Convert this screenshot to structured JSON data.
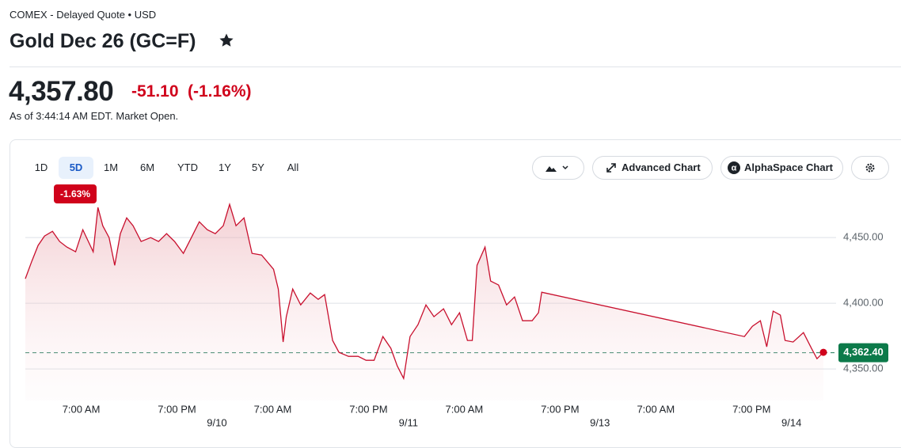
{
  "header": {
    "exchange": "COMEX - Delayed Quote • USD",
    "title": "Gold Dec 26 (GC=F)"
  },
  "quote": {
    "price": "4,357.80",
    "change": "-51.10",
    "change_pct": "(-1.16%)",
    "as_of": "As of 3:44:14 AM EDT. Market Open."
  },
  "ranges": [
    "1D",
    "5D",
    "1M",
    "6M",
    "YTD",
    "1Y",
    "5Y",
    "All"
  ],
  "selected_range": 1,
  "range_change": "-1.63%",
  "tools": [
    "Advanced Chart",
    "AlphaSpace Chart"
  ],
  "chart_data": {
    "type": "line",
    "color": "#c8102e",
    "x": [
      0,
      0.8,
      1.6,
      2.4,
      3.4,
      4.3,
      5.2,
      6.3,
      7.2,
      7.9,
      8.5,
      9.1,
      9.7,
      10.5,
      11.2,
      11.9,
      12.7,
      13.5,
      14.5,
      15.7,
      16.7,
      17.7,
      18.7,
      19.8,
      20.8,
      21.8,
      22.8,
      23.8,
      24.8,
      25.6,
      26.4,
      27.4,
      28.4,
      29.6,
      31.1,
      31.7,
      32.3,
      32.7,
      33.5,
      34.5,
      35.7,
      36.7,
      37.5,
      38.5,
      39.3,
      40.5,
      41.7,
      42.7,
      43.7,
      44.8,
      45.8,
      46.6,
      47.4,
      48.2,
      49.2,
      50.2,
      51.2,
      52.4,
      53.4,
      54.4,
      55.4,
      56,
      56.6,
      57.6,
      58.3,
      59.3,
      60.3,
      61.3,
      62.3,
      63.5,
      64.3,
      64.7,
      90.1,
      91.1,
      92.1,
      92.9,
      93.7,
      94.6,
      95.2,
      96.2,
      97.5,
      98.5,
      99.2,
      100
    ],
    "values": [
      4418.7,
      4431.9,
      4444,
      4451.2,
      4454.8,
      4447,
      4442.8,
      4439.2,
      4456,
      4447,
      4439.2,
      4472.9,
      4459,
      4450,
      4428.9,
      4453,
      4465,
      4459,
      4447,
      4450,
      4447,
      4453,
      4447,
      4438,
      4450,
      4462,
      4456,
      4453,
      4459,
      4475.3,
      4459,
      4465,
      4438,
      4436.7,
      4425.9,
      4410.8,
      4370.5,
      4389.8,
      4410.8,
      4398.8,
      4407.8,
      4403,
      4406.6,
      4371.7,
      4362.7,
      4359.6,
      4359.6,
      4356.6,
      4356.6,
      4374.7,
      4365.7,
      4352.4,
      4342.8,
      4374.7,
      4383.7,
      4398.8,
      4389.8,
      4395.8,
      4383.7,
      4392.8,
      4371.7,
      4371.7,
      4428.9,
      4442.8,
      4416.9,
      4413.9,
      4398.8,
      4404.8,
      4386.7,
      4386.7,
      4392.8,
      4408.4,
      4374.7,
      4382.5,
      4386.7,
      4366.9,
      4394,
      4391,
      4371.7,
      4370.5,
      4377.7,
      4365.7,
      4357.8,
      4362.7
    ],
    "xlim": [
      0,
      100
    ],
    "ylim": [
      4326,
      4476
    ],
    "yticks": [
      {
        "value": 4350,
        "label": "4,350.00"
      },
      {
        "value": 4400,
        "label": "4,400.00"
      },
      {
        "value": 4450,
        "label": "4,450.00"
      }
    ],
    "xticks": [
      {
        "value": 7,
        "label": "7:00 AM"
      },
      {
        "value": 19,
        "label": "7:00 PM"
      },
      {
        "value": 31,
        "label": "7:00 AM"
      },
      {
        "value": 43,
        "label": "7:00 PM"
      },
      {
        "value": 55,
        "label": "7:00 AM"
      },
      {
        "value": 67,
        "label": "7:00 PM"
      },
      {
        "value": 79,
        "label": "7:00 AM"
      },
      {
        "value": 91,
        "label": "7:00 PM"
      }
    ],
    "date_ticks": [
      {
        "value": 24,
        "label": "9/10"
      },
      {
        "value": 48,
        "label": "9/11"
      },
      {
        "value": 72,
        "label": "9/13"
      },
      {
        "value": 96,
        "label": "9/14"
      }
    ],
    "reference": {
      "value": 4362.4,
      "label": "4,362.40"
    },
    "grid": true
  }
}
